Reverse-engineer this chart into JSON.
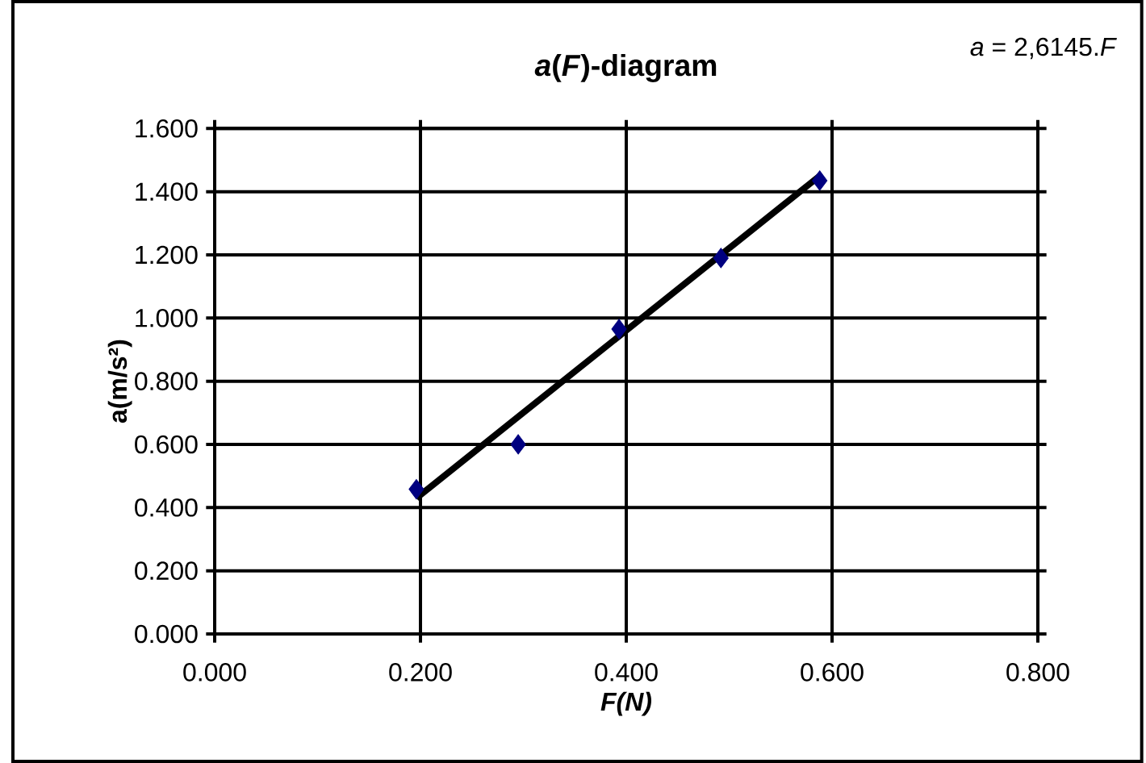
{
  "chart_data": {
    "type": "scatter",
    "title": "*a*(*F*)-diagram",
    "xlabel": "F(N)",
    "ylabel": "a(m/s²)",
    "annotations": [
      "*a* = 2,6145.*F*"
    ],
    "series": [
      {
        "color": "#000080",
        "marker": "diamond",
        "x": [
          0.196,
          0.295,
          0.393,
          0.492,
          0.588
        ],
        "values": [
          0.458,
          0.6,
          0.965,
          1.19,
          1.435
        ]
      },
      {
        "type": "line",
        "color": "#000000",
        "marker": "none",
        "x": [
          0.196,
          0.588
        ],
        "values": [
          0.43,
          1.45
        ]
      }
    ],
    "xlim": [
      0,
      0.8
    ],
    "ylim": [
      0,
      1.6
    ],
    "xticks": [
      {
        "value": 0,
        "label": "0.000"
      },
      {
        "value": 0.2,
        "label": "0.200"
      },
      {
        "value": 0.4,
        "label": "0.400"
      },
      {
        "value": 0.6,
        "label": "0.600"
      },
      {
        "value": 0.8,
        "label": "0.800"
      }
    ],
    "yticks": [
      {
        "value": 0,
        "label": "0.000"
      },
      {
        "value": 0.2,
        "label": "0.200"
      },
      {
        "value": 0.4,
        "label": "0.400"
      },
      {
        "value": 0.6,
        "label": "0.600"
      },
      {
        "value": 0.8,
        "label": "0.800"
      },
      {
        "value": 1.0,
        "label": "1.000"
      },
      {
        "value": 1.2,
        "label": "1.200"
      },
      {
        "value": 1.4,
        "label": "1.400"
      },
      {
        "value": 1.6,
        "label": "1.600"
      }
    ],
    "grid": true
  }
}
